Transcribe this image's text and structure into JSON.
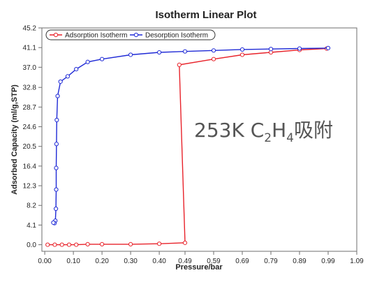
{
  "chart_data": {
    "type": "line",
    "title": "Isotherm Linear Plot",
    "xlabel": "Pressure/bar",
    "ylabel": "Adsorbed Capacity (ml/g,STP)",
    "xlim": [
      -0.01,
      1.09
    ],
    "ylim": [
      -1.37,
      45.2
    ],
    "x_ticks": [
      "0.00",
      "0.10",
      "0.20",
      "0.30",
      "0.40",
      "0.49",
      "0.59",
      "0.69",
      "0.79",
      "0.89",
      "0.99",
      "1.09"
    ],
    "x_tick_values": [
      0.0,
      0.1,
      0.2,
      0.3,
      0.4,
      0.49,
      0.59,
      0.69,
      0.79,
      0.89,
      0.99,
      1.09
    ],
    "y_ticks": [
      "0.0",
      "4.1",
      "8.2",
      "12.3",
      "16.4",
      "20.5",
      "24.6",
      "28.7",
      "32.8",
      "37.0",
      "41.1",
      "45.2"
    ],
    "y_tick_values": [
      0.0,
      4.1,
      8.2,
      12.3,
      16.4,
      20.5,
      24.6,
      28.7,
      32.8,
      37.0,
      41.1,
      45.2
    ],
    "series": [
      {
        "name": "Adsorption Isotherm",
        "color": "#e8222a",
        "marker": "circle",
        "x": [
          0.01,
          0.035,
          0.06,
          0.085,
          0.11,
          0.15,
          0.2,
          0.3,
          0.4,
          0.49,
          0.47,
          0.59,
          0.69,
          0.79,
          0.89,
          0.985
        ],
        "y": [
          0.0,
          0.0,
          0.0,
          0.0,
          0.0,
          0.1,
          0.1,
          0.1,
          0.2,
          0.4,
          37.5,
          38.7,
          39.6,
          40.1,
          40.6,
          40.9
        ]
      },
      {
        "name": "Desorption Isotherm",
        "color": "#1f2ad6",
        "marker": "circle",
        "x": [
          0.99,
          0.89,
          0.79,
          0.69,
          0.59,
          0.49,
          0.4,
          0.3,
          0.2,
          0.15,
          0.11,
          0.08,
          0.055,
          0.045,
          0.042,
          0.041,
          0.04,
          0.04,
          0.039,
          0.037,
          0.034,
          0.03
        ],
        "y": [
          41.0,
          40.9,
          40.8,
          40.7,
          40.5,
          40.3,
          40.1,
          39.6,
          38.7,
          38.1,
          36.6,
          35.1,
          34.0,
          31.0,
          26.0,
          21.0,
          16.0,
          11.5,
          7.5,
          5.0,
          4.5,
          4.6
        ]
      }
    ],
    "legend": "top-left",
    "grid": false,
    "annotation": {
      "main": "253K C",
      "sub1": "2",
      "mid": "H",
      "sub2": "4",
      "tail": "吸附"
    }
  }
}
